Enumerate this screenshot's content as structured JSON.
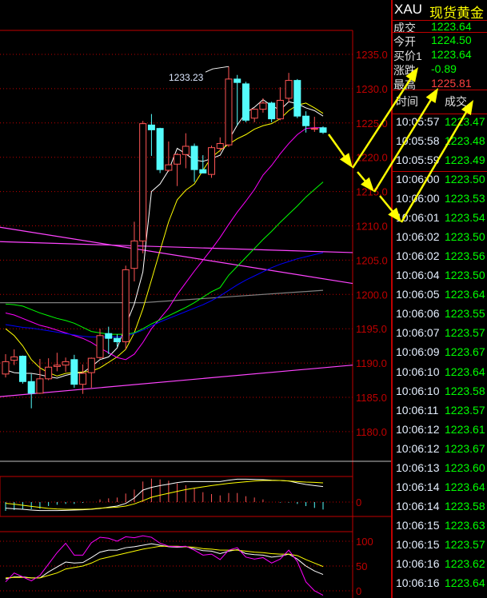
{
  "quote_panel": {
    "symbol": "XAU",
    "name": "现货黄金",
    "last": {
      "label": "成交",
      "value": "1223.64"
    },
    "rows": [
      {
        "label": "今开",
        "value": "1224.50"
      },
      {
        "label": "买价1",
        "value": "1223.64"
      },
      {
        "label": "涨跌",
        "value": "-0.89"
      },
      {
        "label": "最高",
        "value": "1225.81"
      }
    ],
    "ticks_header": {
      "time": "时间",
      "price": "成交"
    },
    "ticks": [
      {
        "time": "10:05:57",
        "price": "1223.47"
      },
      {
        "time": "10:05:58",
        "price": "1223.48"
      },
      {
        "time": "10:05:59",
        "price": "1223.49"
      },
      {
        "time": "10:06:00",
        "price": "1223.50"
      },
      {
        "time": "10:06:00",
        "price": "1223.53"
      },
      {
        "time": "10:06:01",
        "price": "1223.54"
      },
      {
        "time": "10:06:02",
        "price": "1223.50"
      },
      {
        "time": "10:06:02",
        "price": "1223.56"
      },
      {
        "time": "10:06:04",
        "price": "1223.50"
      },
      {
        "time": "10:06:05",
        "price": "1223.64"
      },
      {
        "time": "10:06:06",
        "price": "1223.55"
      },
      {
        "time": "10:06:07",
        "price": "1223.57"
      },
      {
        "time": "10:06:09",
        "price": "1223.67"
      },
      {
        "time": "10:06:10",
        "price": "1223.64"
      },
      {
        "time": "10:06:10",
        "price": "1223.58"
      },
      {
        "time": "10:06:11",
        "price": "1223.57"
      },
      {
        "time": "10:06:12",
        "price": "1223.61"
      },
      {
        "time": "10:06:12",
        "price": "1223.67"
      },
      {
        "time": "10:06:13",
        "price": "1223.60"
      },
      {
        "time": "10:06:14",
        "price": "1223.64"
      },
      {
        "time": "10:06:14",
        "price": "1223.58"
      },
      {
        "time": "10:06:15",
        "price": "1223.63"
      },
      {
        "time": "10:06:15",
        "price": "1223.57"
      },
      {
        "time": "10:06:16",
        "price": "1223.62"
      },
      {
        "time": "10:06:16",
        "price": "1223.64"
      }
    ]
  },
  "colors": {
    "background": "#000000",
    "up": "#ff5555",
    "down": "#54fcfc",
    "axis": "#c00000",
    "quote_up": "#00ff00",
    "quote_high": "#ff4040",
    "annotation_arrows": "#ffff00"
  },
  "chart_data": [
    {
      "type": "candlestick",
      "ylim": [
        1178,
        1240
      ],
      "yticks": [
        "1235.0",
        "1230.0",
        "1225.0",
        "1220.0",
        "1215.0",
        "1210.0",
        "1205.0",
        "1200.0",
        "1195.0",
        "1190.0",
        "1185.0",
        "1180.0"
      ],
      "grid": true,
      "annotation": {
        "text": "1233.23",
        "candle": 26
      },
      "ohlc": [
        [
          1188.4,
          1191.3,
          1187.9,
          1190.2
        ],
        [
          1190.4,
          1192.0,
          1189.7,
          1190.9
        ],
        [
          1191.0,
          1191.1,
          1187.0,
          1187.3
        ],
        [
          1187.3,
          1188.4,
          1183.4,
          1185.6
        ],
        [
          1185.6,
          1190.6,
          1185.5,
          1187.7
        ],
        [
          1187.7,
          1190.7,
          1187.5,
          1189.4
        ],
        [
          1189.5,
          1191.5,
          1188.8,
          1189.7
        ],
        [
          1189.7,
          1190.8,
          1188.7,
          1190.2
        ],
        [
          1190.5,
          1191.2,
          1186.4,
          1186.9
        ],
        [
          1186.9,
          1189.8,
          1185.5,
          1188.5
        ],
        [
          1188.6,
          1190.8,
          1186.4,
          1190.7
        ],
        [
          1190.8,
          1195.0,
          1190.6,
          1194.0
        ],
        [
          1194.3,
          1195.3,
          1191.3,
          1193.6
        ],
        [
          1193.6,
          1194.2,
          1192.4,
          1193.1
        ],
        [
          1193.1,
          1204.2,
          1192.0,
          1203.6
        ],
        [
          1203.8,
          1210.6,
          1201.9,
          1207.8
        ],
        [
          1207.8,
          1225.3,
          1206.0,
          1224.9
        ],
        [
          1224.7,
          1226.3,
          1220.2,
          1224.0
        ],
        [
          1224.2,
          1224.3,
          1217.7,
          1218.2
        ],
        [
          1218.1,
          1222.3,
          1217.9,
          1218.9
        ],
        [
          1219.0,
          1220.6,
          1215.8,
          1220.4
        ],
        [
          1220.4,
          1223.5,
          1218.4,
          1221.6
        ],
        [
          1221.6,
          1222.0,
          1216.4,
          1218.2
        ],
        [
          1218.2,
          1220.3,
          1217.7,
          1217.7
        ],
        [
          1217.5,
          1221.7,
          1217.0,
          1221.4
        ],
        [
          1221.3,
          1222.9,
          1220.8,
          1222.0
        ],
        [
          1221.8,
          1233.23,
          1221.5,
          1231.4
        ],
        [
          1231.4,
          1232.0,
          1224.6,
          1230.9
        ],
        [
          1230.7,
          1231.0,
          1225.1,
          1225.4
        ],
        [
          1225.7,
          1227.1,
          1225.1,
          1227.0
        ],
        [
          1227.0,
          1228.6,
          1226.5,
          1227.9
        ],
        [
          1227.9,
          1228.1,
          1225.1,
          1225.6
        ],
        [
          1225.6,
          1230.2,
          1225.4,
          1228.3
        ],
        [
          1228.6,
          1232.3,
          1228.0,
          1231.2
        ],
        [
          1231.2,
          1231.4,
          1225.7,
          1226.0
        ],
        [
          1226.0,
          1226.7,
          1223.6,
          1224.6
        ],
        [
          1224.1,
          1225.9,
          1223.7,
          1224.2
        ],
        [
          1224.3,
          1224.5,
          1223.4,
          1223.64
        ]
      ],
      "series": [
        {
          "color": "#ffffff",
          "values": [
            1189,
            1188.6,
            1188.5,
            1188.5,
            1188.3,
            1188,
            1187.8,
            1188.2,
            1188.5,
            1188.6,
            1189.5,
            1190.5,
            1190.9,
            1192.2,
            1195.5,
            1198.6,
            1203.3,
            1215,
            1216.1,
            1218.1,
            1221.3,
            1220.5,
            1219.6,
            1219.4,
            1219.8,
            1220.3,
            1222.5,
            1224.7,
            1226.5,
            1227.3,
            1228.4,
            1227.5,
            1226.9,
            1228.1,
            1227.8,
            1227.2,
            1226.8,
            1226.0
          ]
        },
        {
          "color": "#ffff00",
          "values": [
            1195.0,
            1194.0,
            1192.5,
            1190.5,
            1189.3,
            1188.6,
            1188.1,
            1188.5,
            1188.6,
            1188.7,
            1188.8,
            1189.3,
            1190.1,
            1190.9,
            1192.0,
            1194.4,
            1197.9,
            1202.1,
            1206.4,
            1210.6,
            1213.8,
            1215.2,
            1216.1,
            1218.1,
            1220.0,
            1221.0,
            1221.9,
            1222.7,
            1223.3,
            1224.1,
            1224.6,
            1224.9,
            1225.6,
            1226.8,
            1227.6,
            1227.9,
            1227.2,
            1226.4
          ]
        },
        {
          "color": "#ff00ff",
          "values": [
            1197.3,
            1197,
            1196.5,
            1196,
            1195.5,
            1195.2,
            1194.8,
            1194.4,
            1194,
            1193.6,
            1193,
            1192.2,
            1191.5,
            1190.8,
            1190.5,
            1191.3,
            1193,
            1195,
            1196.5,
            1198,
            1200,
            1201.7,
            1203.4,
            1205,
            1206.6,
            1208.3,
            1210.2,
            1212,
            1213.6,
            1215.3,
            1217.4,
            1218.8,
            1220.5,
            1222,
            1223.3,
            1224.2,
            1224.3,
            1224.3
          ]
        },
        {
          "color": "#00ff00",
          "values": [
            1198.6,
            1198.5,
            1198.3,
            1197.8,
            1197.3,
            1196.9,
            1196.5,
            1196.2,
            1195.8,
            1195.2,
            1194.6,
            1194.4,
            1194.2,
            1194.2,
            1194.2,
            1194.4,
            1195,
            1195.7,
            1196.3,
            1196.9,
            1197.5,
            1198.1,
            1198.8,
            1199.6,
            1200.4,
            1201,
            1202.8,
            1204.1,
            1205.4,
            1206.7,
            1208,
            1209.2,
            1210.5,
            1211.7,
            1212.9,
            1214.2,
            1215.3,
            1216.4
          ]
        },
        {
          "color": "#0000ff",
          "values": [
            1195.6,
            1195.4,
            1195.2,
            1195.1,
            1194.9,
            1194.7,
            1194.5,
            1194.3,
            1194.1,
            1193.9,
            1193.8,
            1193.8,
            1193.8,
            1193.8,
            1193.9,
            1194.3,
            1194.8,
            1195.4,
            1196,
            1196.5,
            1197,
            1197.5,
            1198,
            1198.5,
            1199.1,
            1199.8,
            1200.6,
            1201.4,
            1202.1,
            1202.7,
            1203.3,
            1203.9,
            1204.4,
            1204.8,
            1205.2,
            1205.5,
            1205.8,
            1206.1
          ]
        }
      ],
      "trend_lines": [
        {
          "color": "#ff44ff",
          "points": [
            [
              -0.65,
              1209.8
            ],
            [
              40.45,
              1201.6
            ]
          ]
        },
        {
          "color": "#ff44ff",
          "points": [
            [
              -0.65,
              1207.7
            ],
            [
              40.45,
              1206.1
            ]
          ]
        },
        {
          "color": "#ff44ff",
          "points": [
            [
              -0.65,
              1185.1
            ],
            [
              40.45,
              1189.7
            ]
          ]
        },
        {
          "color": "#808080",
          "points": [
            [
              -0.65,
              1198.8
            ],
            [
              16,
              1198.8
            ],
            [
              37,
              1200.6
            ]
          ]
        }
      ]
    },
    {
      "type": "bar",
      "yticks": [
        "0"
      ],
      "histogram": [
        -33,
        -30,
        -27,
        -27,
        -25,
        -15,
        -10,
        -7,
        -7,
        -3,
        0,
        10,
        14,
        17,
        32,
        47,
        77,
        88,
        85,
        80,
        70,
        63,
        53,
        37,
        30,
        25,
        34,
        34,
        22,
        17,
        10,
        0,
        -2,
        -2,
        -7,
        -15,
        -22,
        -28
      ],
      "series": [
        {
          "color": "#ffffff",
          "values": [
            -23,
            -25,
            -27,
            -30,
            -32,
            -32,
            -32,
            -31,
            -30,
            -29,
            -27,
            -24,
            -19,
            -15,
            -5,
            15,
            45,
            55,
            62,
            67,
            73,
            77,
            77,
            77,
            77,
            77,
            82,
            86,
            86,
            85,
            84,
            82,
            81,
            79,
            72,
            66,
            62,
            58
          ]
        },
        {
          "color": "#ffff00",
          "values": [
            -5,
            -8,
            -12,
            -16,
            -20,
            -24,
            -26,
            -27,
            -27,
            -27,
            -26,
            -23,
            -21,
            -19,
            -15,
            -7,
            5,
            18,
            26,
            33,
            40,
            47,
            52,
            57,
            62,
            66,
            70,
            73,
            76,
            79,
            81,
            81,
            81,
            79,
            77,
            75,
            74,
            72
          ]
        }
      ]
    },
    {
      "type": "line",
      "ylim": [
        0,
        100
      ],
      "yticks": [
        "100",
        "50",
        "0"
      ],
      "series": [
        {
          "color": "#ffffff",
          "values": [
            24,
            28,
            28,
            26,
            26,
            38,
            48,
            58,
            56,
            57,
            67,
            78,
            82,
            82,
            87,
            89,
            92,
            95,
            92,
            89,
            88,
            89,
            85,
            81,
            80,
            75,
            80,
            83,
            75,
            73,
            72,
            68,
            70,
            74,
            64,
            50,
            40,
            33
          ]
        },
        {
          "color": "#ffff00",
          "values": [
            26,
            27,
            27,
            26,
            26,
            31,
            36,
            44,
            47,
            50,
            56,
            64,
            68,
            72,
            76,
            80,
            84,
            87,
            90,
            90,
            90,
            89,
            88,
            85,
            84,
            82,
            82,
            82,
            80,
            78,
            77,
            75,
            74,
            74,
            71,
            63,
            56,
            49
          ]
        },
        {
          "color": "#ff00ff",
          "values": [
            18,
            36,
            28,
            20,
            31,
            54,
            77,
            96,
            72,
            72,
            97,
            108,
            106,
            100,
            109,
            107,
            111,
            108,
            96,
            90,
            89,
            90,
            82,
            72,
            74,
            63,
            82,
            87,
            68,
            64,
            67,
            56,
            64,
            82,
            59,
            18,
            0,
            -9
          ]
        }
      ]
    }
  ]
}
